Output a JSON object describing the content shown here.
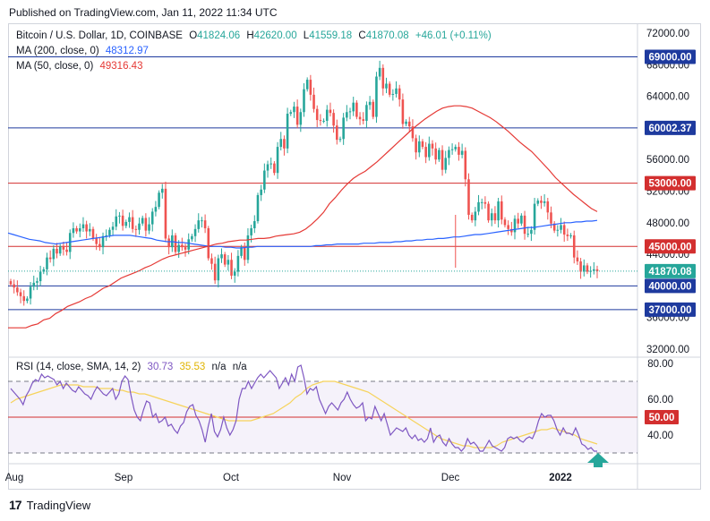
{
  "published": "Published on TradingView.com, Jan 11, 2022 11:34 UTC",
  "footer": {
    "logo_mark": "17",
    "brand": "TradingView"
  },
  "colors": {
    "up": "#26a69a",
    "down": "#ef5350",
    "ma200": "#2962ff",
    "ma50": "#e53935",
    "rsi": "#7e57c2",
    "rsi_ma": "#f6d35b",
    "blue_level": "#1e3a9e",
    "red_level": "#d32f2f",
    "arrow": "#26a69a"
  },
  "legend": {
    "symbol": "Bitcoin / U.S. Dollar, 1D, COINBASE",
    "open_label": "O",
    "open": "41824.06",
    "high_label": "H",
    "high": "42620.00",
    "low_label": "L",
    "low": "41559.18",
    "close_label": "C",
    "close": "41870.08",
    "change": "+46.01 (+0.11%)",
    "ma200_label": "MA (200, close, 0)",
    "ma200_value": "48312.97",
    "ma50_label": "MA (50, close, 0)",
    "ma50_value": "49316.43",
    "rsi_label": "RSI (14, close, SMA, 14, 2)",
    "rsi_value": "30.73",
    "rsi_ma_value": "35.53",
    "rsi_na1": "n/a",
    "rsi_na2": "n/a"
  },
  "chart_data": {
    "type": "candlestick",
    "ylim": [
      30000,
      74000
    ],
    "y_ticks": [
      "72000.00",
      "68000.00",
      "64000.00",
      "60000.00",
      "56000.00",
      "52000.00",
      "48000.00",
      "44000.00",
      "40000.00",
      "36000.00",
      "32000.00"
    ],
    "x_ticks": [
      "Aug",
      "Sep",
      "Oct",
      "Nov",
      "Dec",
      "2022"
    ],
    "levels": [
      {
        "value": 69000,
        "label": "69000.00",
        "color": "blue"
      },
      {
        "value": 60002.37,
        "label": "60002.37",
        "color": "blue"
      },
      {
        "value": 53000,
        "label": "53000.00",
        "color": "red"
      },
      {
        "value": 45000,
        "label": "45000.00",
        "color": "red"
      },
      {
        "value": 40000,
        "label": "40000.00",
        "color": "blue"
      },
      {
        "value": 37000,
        "label": "37000.00",
        "color": "blue"
      }
    ],
    "last_price": {
      "value": 41870.08,
      "label": "41870.08"
    },
    "closes": [
      40200,
      39800,
      39200,
      38700,
      38100,
      38400,
      39900,
      40400,
      40600,
      41800,
      42100,
      43600,
      43400,
      44700,
      44100,
      45000,
      44600,
      44300,
      46700,
      47300,
      46900,
      47300,
      47800,
      46900,
      47200,
      46000,
      45300,
      44900,
      46300,
      46400,
      47100,
      47500,
      48800,
      48900,
      47600,
      48100,
      48700,
      47200,
      47100,
      47900,
      48600,
      47000,
      47800,
      49400,
      50000,
      51800,
      52300,
      46000,
      44900,
      46400,
      44300,
      45200,
      44900,
      44600,
      45900,
      46300,
      47200,
      48300,
      48300,
      47300,
      43500,
      42800,
      40700,
      43500,
      44000,
      42700,
      43300,
      41300,
      41800,
      43800,
      44900,
      43300,
      46400,
      47300,
      48200,
      51500,
      52200,
      54600,
      55400,
      55500,
      54300,
      57600,
      58600,
      57400,
      61800,
      62000,
      62700,
      60400,
      62000,
      64900,
      66100,
      64200,
      62400,
      61000,
      60900,
      60900,
      62300,
      61900,
      60300,
      58500,
      58600,
      61300,
      62000,
      62100,
      63200,
      61400,
      61100,
      60900,
      62900,
      63300,
      61400,
      66500,
      67600,
      65000,
      65600,
      64200,
      64300,
      65000,
      63600,
      60500,
      60800,
      60200,
      58700,
      56900,
      58300,
      57600,
      56300,
      58000,
      57400,
      56000,
      57200,
      54700,
      56200,
      57200,
      57300,
      57600,
      56600,
      57100,
      53500,
      49000,
      48300,
      49400,
      50600,
      50600,
      50400,
      48300,
      49200,
      48300,
      50700,
      48400,
      47700,
      47200,
      46800,
      48500,
      47900,
      48900,
      46600,
      46600,
      47100,
      50400,
      50800,
      50500,
      50700,
      49300,
      47900,
      47000,
      47100,
      47700,
      46500,
      46300,
      46400,
      43600,
      43100,
      41800,
      42600,
      41800,
      41900,
      42100,
      41870
    ],
    "ma200": [
      46700,
      46500,
      46300,
      46100,
      45900,
      45800,
      45700,
      45500,
      45400,
      45300,
      45400,
      45500,
      45600,
      45700,
      45800,
      45900,
      46000,
      46100,
      46200,
      46300,
      46400,
      46400,
      46400,
      46400,
      46300,
      46200,
      46100,
      46000,
      45800,
      45700,
      45600,
      45600,
      45500,
      45500,
      45400,
      45300,
      45200,
      45100,
      45000,
      45000,
      45000,
      44900,
      44900,
      44800,
      44800,
      44900,
      44900,
      45000,
      45000,
      45000,
      45000,
      45000,
      45000,
      45000,
      45000,
      45000,
      45000,
      45000,
      45100,
      45100,
      45200,
      45200,
      45300,
      45300,
      45300,
      45300,
      45300,
      45400,
      45400,
      45400,
      45500,
      45500,
      45500,
      45600,
      45600,
      45700,
      45700,
      45800,
      45800,
      45900,
      45900,
      46000,
      46000,
      46100,
      46200,
      46200,
      46300,
      46400,
      46500,
      46500,
      46600,
      46700,
      46800,
      46900,
      47000,
      47100,
      47200,
      47300,
      47400,
      47400,
      47500,
      47600,
      47700,
      47800,
      47900,
      48000,
      48000,
      48100,
      48100,
      48200,
      48200,
      48300
    ],
    "ma50": [
      34700,
      34700,
      34700,
      34700,
      35000,
      35200,
      35700,
      35900,
      36500,
      36900,
      37400,
      37700,
      38000,
      38400,
      38700,
      39200,
      39700,
      40000,
      40500,
      41000,
      41300,
      41600,
      41900,
      42300,
      42600,
      43000,
      43400,
      43700,
      43900,
      44100,
      44300,
      44500,
      44700,
      44900,
      45100,
      45300,
      45400,
      45600,
      45700,
      45800,
      45800,
      45900,
      46000,
      46000,
      46100,
      46300,
      46400,
      46500,
      46600,
      46800,
      47200,
      47800,
      48500,
      49300,
      50400,
      51200,
      52100,
      52900,
      53600,
      54100,
      54500,
      55100,
      55700,
      56400,
      57100,
      57800,
      58500,
      59200,
      59900,
      60500,
      61100,
      61600,
      62100,
      62500,
      62700,
      62800,
      62800,
      62700,
      62500,
      62100,
      61700,
      61300,
      60800,
      60200,
      59600,
      58900,
      58200,
      57600,
      57000,
      56200,
      55400,
      54600,
      53700,
      53000,
      52300,
      51600,
      51000,
      50400,
      49800,
      49400
    ],
    "rsi": [
      66,
      64,
      62,
      60,
      57,
      62,
      65,
      69,
      71,
      70,
      74,
      72,
      73,
      72,
      71,
      68,
      70,
      66,
      69,
      67,
      65,
      64,
      67,
      65,
      63,
      62,
      60,
      64,
      67,
      65,
      63,
      62,
      64,
      66,
      60,
      63,
      70,
      73,
      71,
      62,
      54,
      50,
      48,
      54,
      59,
      58,
      50,
      52,
      47,
      48,
      50,
      45,
      46,
      43,
      41,
      45,
      47,
      53,
      56,
      57,
      51,
      48,
      43,
      36,
      45,
      52,
      42,
      39,
      43,
      50,
      44,
      40,
      43,
      48,
      60,
      66,
      66,
      70,
      66,
      69,
      72,
      74,
      72,
      74,
      76,
      74,
      72,
      66,
      69,
      72,
      68,
      74,
      70,
      78,
      79,
      72,
      63,
      66,
      65,
      67,
      60,
      56,
      52,
      56,
      58,
      56,
      54,
      58,
      60,
      64,
      60,
      57,
      55,
      56,
      58,
      48,
      50,
      49,
      56,
      52,
      48,
      52,
      46,
      40,
      42,
      44,
      43,
      42,
      44,
      40,
      38,
      40,
      37,
      38,
      36,
      38,
      44,
      36,
      39,
      40,
      36,
      34,
      38,
      35,
      33,
      33,
      31,
      33,
      38,
      35,
      36,
      34,
      31,
      31,
      34,
      37,
      34,
      33,
      32,
      31,
      33,
      38,
      39,
      38,
      39,
      37,
      36,
      38,
      39,
      38,
      42,
      48,
      52,
      50,
      51,
      51,
      48,
      43,
      40,
      44,
      41,
      41,
      40,
      44,
      40,
      35,
      34,
      32,
      33,
      31,
      31
    ],
    "rsi_ma": [
      58,
      60,
      61,
      62,
      63,
      64,
      65,
      66,
      67,
      68,
      68,
      68,
      68,
      67,
      67,
      67,
      66,
      66,
      66,
      65,
      65,
      64,
      64,
      63,
      63,
      62,
      61,
      60,
      59,
      58,
      57,
      56,
      55,
      54,
      53,
      52,
      51,
      50,
      49,
      48,
      48,
      48,
      48,
      48,
      49,
      50,
      51,
      52,
      54,
      56,
      58,
      61,
      63,
      66,
      68,
      69,
      70,
      70,
      70,
      69,
      68,
      67,
      66,
      65,
      64,
      62,
      60,
      58,
      56,
      54,
      52,
      50,
      48,
      46,
      44,
      42,
      40,
      38,
      37,
      36,
      35,
      34,
      34,
      33,
      33,
      33,
      33,
      34,
      36,
      37,
      38,
      39,
      40,
      41,
      42,
      43,
      43,
      44,
      43,
      42,
      41,
      40,
      38,
      37,
      36,
      35
    ],
    "rsi_ylim": [
      20,
      85
    ],
    "rsi_ticks": [
      "80.00",
      "60.00",
      "40.00"
    ],
    "rsi_lines": [
      {
        "value": 70,
        "style": "dashed"
      },
      {
        "value": 50,
        "label": "50.00",
        "color": "red"
      },
      {
        "value": 30,
        "style": "dashed"
      }
    ],
    "annotation": "up-arrow"
  }
}
